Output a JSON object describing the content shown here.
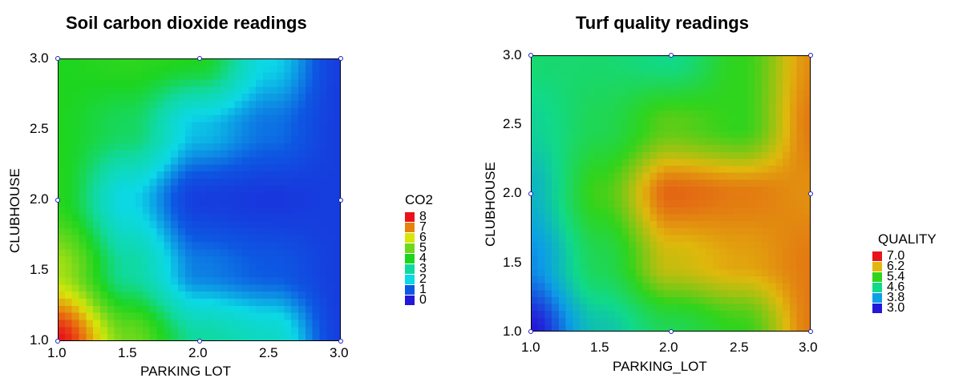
{
  "chart_data": [
    {
      "type": "heatmap",
      "title": "Soil carbon dioxide readings",
      "xlabel": "PARKING  LOT",
      "ylabel": "CLUBHOUSE",
      "xlim": [
        1.0,
        3.0
      ],
      "ylim": [
        1.0,
        3.0
      ],
      "x_ticks": [
        "1.0",
        "1.5",
        "2.0",
        "2.5",
        "3.0"
      ],
      "y_ticks": [
        "1.0",
        "1.5",
        "2.0",
        "2.5",
        "3.0"
      ],
      "legend_title": "CO2",
      "legend_placement": "right",
      "color_bins": [
        {
          "label": "8",
          "color": "#e8141b"
        },
        {
          "label": "7",
          "color": "#e8820d"
        },
        {
          "label": "6",
          "color": "#d8e60a"
        },
        {
          "label": "5",
          "color": "#6ed81c"
        },
        {
          "label": "4",
          "color": "#1dd51f"
        },
        {
          "label": "3",
          "color": "#10d9a0"
        },
        {
          "label": "2",
          "color": "#0cd8e6"
        },
        {
          "label": "1",
          "color": "#0d58e2"
        },
        {
          "label": "0",
          "color": "#2317d8"
        }
      ],
      "sample_points": [
        [
          1,
          1
        ],
        [
          2,
          1
        ],
        [
          3,
          1
        ],
        [
          1,
          2
        ],
        [
          3,
          2
        ],
        [
          1,
          3
        ],
        [
          2,
          3
        ],
        [
          3,
          3
        ]
      ],
      "grid": [
        [
          8.0,
          5.0,
          3.0,
          2.5,
          0.6
        ],
        [
          5.5,
          3.0,
          1.3,
          1.0,
          0.6
        ],
        [
          4.1,
          2.0,
          0.6,
          0.5,
          0.6
        ],
        [
          4.0,
          3.5,
          1.8,
          1.2,
          0.6
        ],
        [
          4.0,
          4.2,
          4.0,
          2.0,
          0.6
        ]
      ],
      "range": [
        0,
        8
      ]
    },
    {
      "type": "heatmap",
      "title": "Turf quality readings",
      "xlabel": "PARKING_LOT",
      "ylabel": "CLUBHOUSE",
      "xlim": [
        1.0,
        3.0
      ],
      "ylim": [
        1.0,
        3.0
      ],
      "x_ticks": [
        "1.0",
        "1.5",
        "2.0",
        "2.5",
        "3.0"
      ],
      "y_ticks": [
        "1.0",
        "1.5",
        "2.0",
        "2.5",
        "3.0"
      ],
      "legend_title": "QUALITY",
      "legend_placement": "right",
      "color_bins": [
        {
          "label": "7.0",
          "color": "#e8141b"
        },
        {
          "label": "6.2",
          "color": "#e0b80c"
        },
        {
          "label": "5.4",
          "color": "#2fd41c"
        },
        {
          "label": "4.6",
          "color": "#10d98a"
        },
        {
          "label": "3.8",
          "color": "#0c9ee6"
        },
        {
          "label": "3.0",
          "color": "#2317d8"
        }
      ],
      "sample_points": [
        [
          1,
          1
        ],
        [
          2,
          1
        ],
        [
          3,
          1
        ],
        [
          1,
          2
        ],
        [
          3,
          2
        ],
        [
          1,
          3
        ],
        [
          2,
          3
        ],
        [
          3,
          3
        ]
      ],
      "grid": [
        [
          3.0,
          4.3,
          5.0,
          5.4,
          6.5
        ],
        [
          3.7,
          5.0,
          6.1,
          6.3,
          6.5
        ],
        [
          4.1,
          5.5,
          6.6,
          6.5,
          6.4
        ],
        [
          4.5,
          5.0,
          5.6,
          5.4,
          6.5
        ],
        [
          4.8,
          4.8,
          4.6,
          5.4,
          6.4
        ]
      ],
      "range": [
        3.0,
        7.0
      ]
    }
  ]
}
